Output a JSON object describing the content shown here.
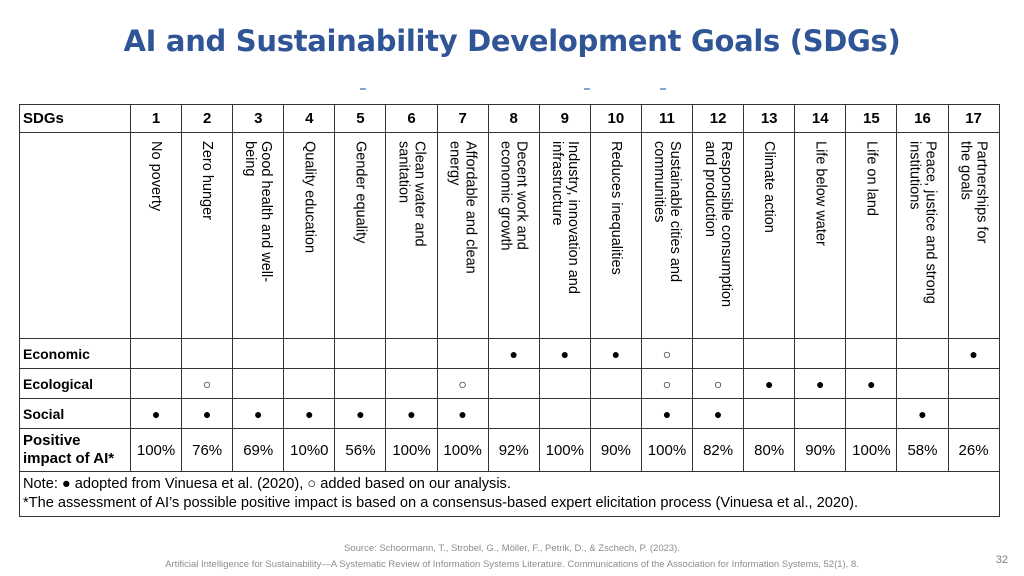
{
  "title": "AI and Sustainability Development Goals (SDGs)",
  "table": {
    "header_label": "SDGs",
    "numbers": [
      "1",
      "2",
      "3",
      "4",
      "5",
      "6",
      "7",
      "8",
      "9",
      "10",
      "11",
      "12",
      "13",
      "14",
      "15",
      "16",
      "17"
    ],
    "goals": [
      "No poverty",
      "Zero hunger",
      "Good health and well-\nbeing",
      "Quality education",
      "Gender equality",
      "Clean water and\nsanitation",
      "Affordable and clean\nenergy",
      "Decent work and\neconomic growth",
      "Industry, innovation and\ninfrastructure",
      "Reduces inequalities",
      "Sustainable cities and\ncommunities",
      "Responsible consumption\nand production",
      "Climate action",
      "Life below water",
      "Life on land",
      "Peace, justice and strong\ninstitutions",
      "Partnerships for\nthe goals"
    ],
    "rows": [
      {
        "label": "Economic",
        "marks": [
          "",
          "",
          "",
          "",
          "",
          "",
          "",
          "●",
          "●",
          "●",
          "○",
          "",
          "",
          "",
          "",
          "",
          "●"
        ]
      },
      {
        "label": "Ecological",
        "marks": [
          "",
          "○",
          "",
          "",
          "",
          "",
          "○",
          "",
          "",
          "",
          "○",
          "○",
          "●",
          "●",
          "●",
          "",
          ""
        ]
      },
      {
        "label": "Social",
        "marks": [
          "●",
          "●",
          "●",
          "●",
          "●",
          "●",
          "●",
          "",
          "",
          "",
          "●",
          "●",
          "",
          "",
          "",
          "●",
          ""
        ]
      }
    ],
    "impact_label_1": "Positive",
    "impact_label_2": "impact of AI*",
    "impact": [
      "100%",
      "76%",
      "69%",
      "10%0",
      "56%",
      "100%",
      "100%",
      "92%",
      "100%",
      "90%",
      "100%",
      "82%",
      "80%",
      "90%",
      "100%",
      "58%",
      "26%"
    ],
    "note_1": "Note: ● adopted from Vinuesa et al. (2020), ○ added based on our analysis.",
    "note_2": "*The assessment of AI’s possible positive impact is based on a consensus-based expert elicitation process (Vinuesa et al., 2020)."
  },
  "source_1": "Source: Schoormann, T., Strobel, G., Möller, F., Petrik, D., & Zschech, P. (2023).",
  "source_2": "Artificial Intelligence for Sustainability—A Systematic Review of Information Systems Literature. Communications of the Association for Information Systems, 52(1), 8.",
  "page_number": "32"
}
